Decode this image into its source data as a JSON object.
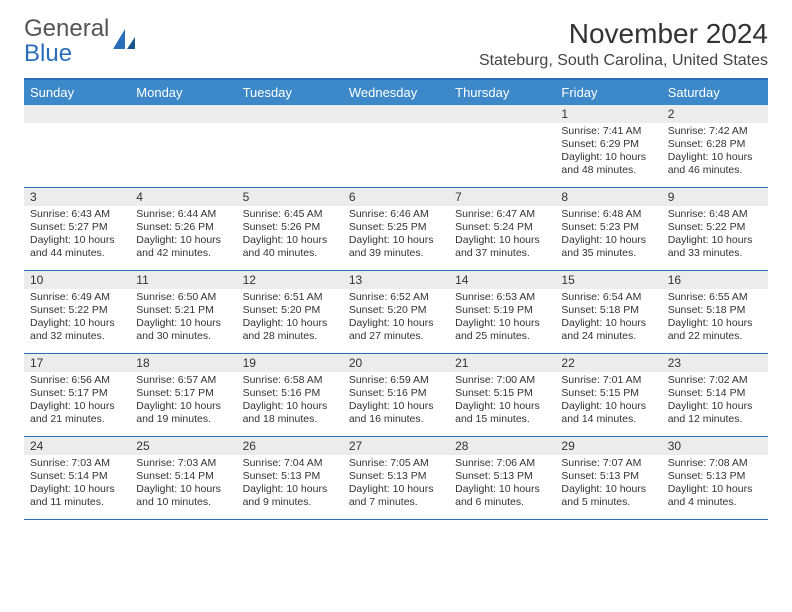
{
  "logo": {
    "line1": "General",
    "line2": "Blue"
  },
  "title": "November 2024",
  "location": "Stateburg, South Carolina, United States",
  "colors": {
    "header_bg": "#3c88c8",
    "rule": "#2a6ebb",
    "daynum_bg": "#ececec",
    "text": "#333333",
    "logo_gray": "#555555",
    "logo_blue": "#2a6ebb",
    "background": "#ffffff"
  },
  "typography": {
    "title_fontsize": 28,
    "location_fontsize": 16,
    "dayheader_fontsize": 13,
    "daynum_fontsize": 12,
    "body_fontsize": 10.5
  },
  "day_names": [
    "Sunday",
    "Monday",
    "Tuesday",
    "Wednesday",
    "Thursday",
    "Friday",
    "Saturday"
  ],
  "weeks": [
    [
      {
        "n": "",
        "sunrise": "",
        "sunset": "",
        "daylight": ""
      },
      {
        "n": "",
        "sunrise": "",
        "sunset": "",
        "daylight": ""
      },
      {
        "n": "",
        "sunrise": "",
        "sunset": "",
        "daylight": ""
      },
      {
        "n": "",
        "sunrise": "",
        "sunset": "",
        "daylight": ""
      },
      {
        "n": "",
        "sunrise": "",
        "sunset": "",
        "daylight": ""
      },
      {
        "n": "1",
        "sunrise": "Sunrise: 7:41 AM",
        "sunset": "Sunset: 6:29 PM",
        "daylight": "Daylight: 10 hours and 48 minutes."
      },
      {
        "n": "2",
        "sunrise": "Sunrise: 7:42 AM",
        "sunset": "Sunset: 6:28 PM",
        "daylight": "Daylight: 10 hours and 46 minutes."
      }
    ],
    [
      {
        "n": "3",
        "sunrise": "Sunrise: 6:43 AM",
        "sunset": "Sunset: 5:27 PM",
        "daylight": "Daylight: 10 hours and 44 minutes."
      },
      {
        "n": "4",
        "sunrise": "Sunrise: 6:44 AM",
        "sunset": "Sunset: 5:26 PM",
        "daylight": "Daylight: 10 hours and 42 minutes."
      },
      {
        "n": "5",
        "sunrise": "Sunrise: 6:45 AM",
        "sunset": "Sunset: 5:26 PM",
        "daylight": "Daylight: 10 hours and 40 minutes."
      },
      {
        "n": "6",
        "sunrise": "Sunrise: 6:46 AM",
        "sunset": "Sunset: 5:25 PM",
        "daylight": "Daylight: 10 hours and 39 minutes."
      },
      {
        "n": "7",
        "sunrise": "Sunrise: 6:47 AM",
        "sunset": "Sunset: 5:24 PM",
        "daylight": "Daylight: 10 hours and 37 minutes."
      },
      {
        "n": "8",
        "sunrise": "Sunrise: 6:48 AM",
        "sunset": "Sunset: 5:23 PM",
        "daylight": "Daylight: 10 hours and 35 minutes."
      },
      {
        "n": "9",
        "sunrise": "Sunrise: 6:48 AM",
        "sunset": "Sunset: 5:22 PM",
        "daylight": "Daylight: 10 hours and 33 minutes."
      }
    ],
    [
      {
        "n": "10",
        "sunrise": "Sunrise: 6:49 AM",
        "sunset": "Sunset: 5:22 PM",
        "daylight": "Daylight: 10 hours and 32 minutes."
      },
      {
        "n": "11",
        "sunrise": "Sunrise: 6:50 AM",
        "sunset": "Sunset: 5:21 PM",
        "daylight": "Daylight: 10 hours and 30 minutes."
      },
      {
        "n": "12",
        "sunrise": "Sunrise: 6:51 AM",
        "sunset": "Sunset: 5:20 PM",
        "daylight": "Daylight: 10 hours and 28 minutes."
      },
      {
        "n": "13",
        "sunrise": "Sunrise: 6:52 AM",
        "sunset": "Sunset: 5:20 PM",
        "daylight": "Daylight: 10 hours and 27 minutes."
      },
      {
        "n": "14",
        "sunrise": "Sunrise: 6:53 AM",
        "sunset": "Sunset: 5:19 PM",
        "daylight": "Daylight: 10 hours and 25 minutes."
      },
      {
        "n": "15",
        "sunrise": "Sunrise: 6:54 AM",
        "sunset": "Sunset: 5:18 PM",
        "daylight": "Daylight: 10 hours and 24 minutes."
      },
      {
        "n": "16",
        "sunrise": "Sunrise: 6:55 AM",
        "sunset": "Sunset: 5:18 PM",
        "daylight": "Daylight: 10 hours and 22 minutes."
      }
    ],
    [
      {
        "n": "17",
        "sunrise": "Sunrise: 6:56 AM",
        "sunset": "Sunset: 5:17 PM",
        "daylight": "Daylight: 10 hours and 21 minutes."
      },
      {
        "n": "18",
        "sunrise": "Sunrise: 6:57 AM",
        "sunset": "Sunset: 5:17 PM",
        "daylight": "Daylight: 10 hours and 19 minutes."
      },
      {
        "n": "19",
        "sunrise": "Sunrise: 6:58 AM",
        "sunset": "Sunset: 5:16 PM",
        "daylight": "Daylight: 10 hours and 18 minutes."
      },
      {
        "n": "20",
        "sunrise": "Sunrise: 6:59 AM",
        "sunset": "Sunset: 5:16 PM",
        "daylight": "Daylight: 10 hours and 16 minutes."
      },
      {
        "n": "21",
        "sunrise": "Sunrise: 7:00 AM",
        "sunset": "Sunset: 5:15 PM",
        "daylight": "Daylight: 10 hours and 15 minutes."
      },
      {
        "n": "22",
        "sunrise": "Sunrise: 7:01 AM",
        "sunset": "Sunset: 5:15 PM",
        "daylight": "Daylight: 10 hours and 14 minutes."
      },
      {
        "n": "23",
        "sunrise": "Sunrise: 7:02 AM",
        "sunset": "Sunset: 5:14 PM",
        "daylight": "Daylight: 10 hours and 12 minutes."
      }
    ],
    [
      {
        "n": "24",
        "sunrise": "Sunrise: 7:03 AM",
        "sunset": "Sunset: 5:14 PM",
        "daylight": "Daylight: 10 hours and 11 minutes."
      },
      {
        "n": "25",
        "sunrise": "Sunrise: 7:03 AM",
        "sunset": "Sunset: 5:14 PM",
        "daylight": "Daylight: 10 hours and 10 minutes."
      },
      {
        "n": "26",
        "sunrise": "Sunrise: 7:04 AM",
        "sunset": "Sunset: 5:13 PM",
        "daylight": "Daylight: 10 hours and 9 minutes."
      },
      {
        "n": "27",
        "sunrise": "Sunrise: 7:05 AM",
        "sunset": "Sunset: 5:13 PM",
        "daylight": "Daylight: 10 hours and 7 minutes."
      },
      {
        "n": "28",
        "sunrise": "Sunrise: 7:06 AM",
        "sunset": "Sunset: 5:13 PM",
        "daylight": "Daylight: 10 hours and 6 minutes."
      },
      {
        "n": "29",
        "sunrise": "Sunrise: 7:07 AM",
        "sunset": "Sunset: 5:13 PM",
        "daylight": "Daylight: 10 hours and 5 minutes."
      },
      {
        "n": "30",
        "sunrise": "Sunrise: 7:08 AM",
        "sunset": "Sunset: 5:13 PM",
        "daylight": "Daylight: 10 hours and 4 minutes."
      }
    ]
  ]
}
